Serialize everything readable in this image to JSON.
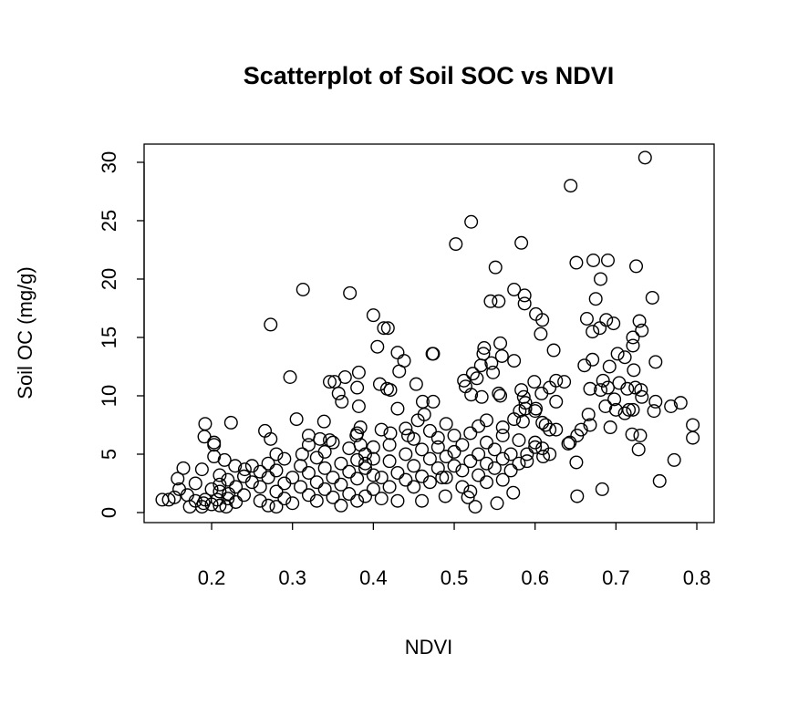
{
  "chart_data": {
    "type": "scatter",
    "title": "Scatterplot of Soil SOC vs NDVI",
    "xlabel": "NDVI",
    "ylabel": "Soil OC (mg/g)",
    "xlim": [
      0.1165,
      0.8214
    ],
    "ylim": [
      -0.86,
      31.56
    ],
    "xticks": [
      0.2,
      0.3,
      0.4,
      0.5,
      0.6,
      0.7,
      0.8
    ],
    "xtick_labels": [
      "0.2",
      "0.3",
      "0.4",
      "0.5",
      "0.6",
      "0.7",
      "0.8"
    ],
    "yticks": [
      0,
      5,
      10,
      15,
      20,
      25,
      30
    ],
    "ytick_labels": [
      "0",
      "5",
      "10",
      "15",
      "20",
      "25",
      "30"
    ],
    "grid": false,
    "marker": "open-circle",
    "color": "#000000",
    "points": [
      [
        0.736,
        30.4
      ],
      [
        0.644,
        28.0
      ],
      [
        0.521,
        24.9
      ],
      [
        0.502,
        23.0
      ],
      [
        0.583,
        23.1
      ],
      [
        0.551,
        21.0
      ],
      [
        0.651,
        21.4
      ],
      [
        0.672,
        21.6
      ],
      [
        0.69,
        21.6
      ],
      [
        0.681,
        20.0
      ],
      [
        0.725,
        21.1
      ],
      [
        0.675,
        18.3
      ],
      [
        0.745,
        18.4
      ],
      [
        0.545,
        18.1
      ],
      [
        0.555,
        18.1
      ],
      [
        0.574,
        19.1
      ],
      [
        0.587,
        18.6
      ],
      [
        0.587,
        17.9
      ],
      [
        0.601,
        17.0
      ],
      [
        0.609,
        16.5
      ],
      [
        0.607,
        15.3
      ],
      [
        0.623,
        13.9
      ],
      [
        0.664,
        16.6
      ],
      [
        0.688,
        16.5
      ],
      [
        0.697,
        16.2
      ],
      [
        0.68,
        15.8
      ],
      [
        0.671,
        15.5
      ],
      [
        0.729,
        16.4
      ],
      [
        0.732,
        15.6
      ],
      [
        0.721,
        15.0
      ],
      [
        0.721,
        14.3
      ],
      [
        0.702,
        13.6
      ],
      [
        0.711,
        13.3
      ],
      [
        0.671,
        13.1
      ],
      [
        0.661,
        12.6
      ],
      [
        0.692,
        12.5
      ],
      [
        0.722,
        12.2
      ],
      [
        0.749,
        12.9
      ],
      [
        0.474,
        13.6
      ],
      [
        0.557,
        14.5
      ],
      [
        0.537,
        14.1
      ],
      [
        0.536,
        13.6
      ],
      [
        0.533,
        12.6
      ],
      [
        0.559,
        13.4
      ],
      [
        0.574,
        13.0
      ],
      [
        0.546,
        12.8
      ],
      [
        0.548,
        12.0
      ],
      [
        0.523,
        11.9
      ],
      [
        0.512,
        11.3
      ],
      [
        0.514,
        10.8
      ],
      [
        0.528,
        11.5
      ],
      [
        0.521,
        10.1
      ],
      [
        0.534,
        9.9
      ],
      [
        0.555,
        10.2
      ],
      [
        0.557,
        10.0
      ],
      [
        0.599,
        11.2
      ],
      [
        0.608,
        10.2
      ],
      [
        0.583,
        10.5
      ],
      [
        0.586,
        9.9
      ],
      [
        0.588,
        9.4
      ],
      [
        0.618,
        10.7
      ],
      [
        0.626,
        11.3
      ],
      [
        0.636,
        11.2
      ],
      [
        0.626,
        9.5
      ],
      [
        0.668,
        10.6
      ],
      [
        0.681,
        10.5
      ],
      [
        0.69,
        10.7
      ],
      [
        0.684,
        11.3
      ],
      [
        0.704,
        11.1
      ],
      [
        0.714,
        10.6
      ],
      [
        0.724,
        10.7
      ],
      [
        0.731,
        10.5
      ],
      [
        0.732,
        9.9
      ],
      [
        0.698,
        9.7
      ],
      [
        0.687,
        9.1
      ],
      [
        0.7,
        8.8
      ],
      [
        0.711,
        8.5
      ],
      [
        0.716,
        8.8
      ],
      [
        0.721,
        8.8
      ],
      [
        0.693,
        7.3
      ],
      [
        0.72,
        6.7
      ],
      [
        0.73,
        6.6
      ],
      [
        0.728,
        5.4
      ],
      [
        0.749,
        9.5
      ],
      [
        0.747,
        8.7
      ],
      [
        0.768,
        9.1
      ],
      [
        0.78,
        9.4
      ],
      [
        0.795,
        7.5
      ],
      [
        0.795,
        6.4
      ],
      [
        0.772,
        4.5
      ],
      [
        0.754,
        2.7
      ],
      [
        0.683,
        2.0
      ],
      [
        0.652,
        1.4
      ],
      [
        0.651,
        4.3
      ],
      [
        0.666,
        8.4
      ],
      [
        0.668,
        7.5
      ],
      [
        0.657,
        7.1
      ],
      [
        0.652,
        6.6
      ],
      [
        0.643,
        6.0
      ],
      [
        0.641,
        5.9
      ],
      [
        0.626,
        7.1
      ],
      [
        0.618,
        7.1
      ],
      [
        0.609,
        7.7
      ],
      [
        0.613,
        7.5
      ],
      [
        0.6,
        8.7
      ],
      [
        0.601,
        8.9
      ],
      [
        0.609,
        5.5
      ],
      [
        0.618,
        5.0
      ],
      [
        0.574,
        8.0
      ],
      [
        0.585,
        7.8
      ],
      [
        0.581,
        8.7
      ],
      [
        0.588,
        8.9
      ],
      [
        0.573,
        1.7
      ],
      [
        0.553,
        0.8
      ],
      [
        0.526,
        0.5
      ],
      [
        0.517,
        1.3
      ],
      [
        0.489,
        1.4
      ],
      [
        0.485,
        3.0
      ],
      [
        0.313,
        19.1
      ],
      [
        0.371,
        18.8
      ],
      [
        0.273,
        16.1
      ],
      [
        0.4,
        16.9
      ],
      [
        0.413,
        15.8
      ],
      [
        0.418,
        15.8
      ],
      [
        0.405,
        14.2
      ],
      [
        0.43,
        13.7
      ],
      [
        0.438,
        13.0
      ],
      [
        0.432,
        12.1
      ],
      [
        0.473,
        13.6
      ],
      [
        0.297,
        11.6
      ],
      [
        0.346,
        11.2
      ],
      [
        0.352,
        11.2
      ],
      [
        0.365,
        11.6
      ],
      [
        0.382,
        12.0
      ],
      [
        0.38,
        10.7
      ],
      [
        0.357,
        10.2
      ],
      [
        0.361,
        9.5
      ],
      [
        0.382,
        9.1
      ],
      [
        0.408,
        11.0
      ],
      [
        0.417,
        10.6
      ],
      [
        0.421,
        10.5
      ],
      [
        0.453,
        11.0
      ],
      [
        0.43,
        8.9
      ],
      [
        0.461,
        9.5
      ],
      [
        0.474,
        9.5
      ],
      [
        0.192,
        7.6
      ],
      [
        0.224,
        7.7
      ],
      [
        0.191,
        6.5
      ],
      [
        0.203,
        6.0
      ],
      [
        0.203,
        5.8
      ],
      [
        0.203,
        4.8
      ],
      [
        0.216,
        4.5
      ],
      [
        0.305,
        8.0
      ],
      [
        0.339,
        7.8
      ],
      [
        0.266,
        7.0
      ],
      [
        0.273,
        6.3
      ],
      [
        0.384,
        7.3
      ],
      [
        0.379,
        6.6
      ],
      [
        0.384,
        5.8
      ],
      [
        0.32,
        6.6
      ],
      [
        0.312,
        5.0
      ],
      [
        0.334,
        6.3
      ],
      [
        0.346,
        6.2
      ],
      [
        0.41,
        7.1
      ],
      [
        0.421,
        6.8
      ],
      [
        0.44,
        7.2
      ],
      [
        0.443,
        6.6
      ],
      [
        0.455,
        7.9
      ],
      [
        0.463,
        8.4
      ],
      [
        0.165,
        3.8
      ],
      [
        0.158,
        2.9
      ],
      [
        0.139,
        1.1
      ],
      [
        0.147,
        1.1
      ],
      [
        0.154,
        1.3
      ],
      [
        0.173,
        0.5
      ],
      [
        0.188,
        0.5
      ],
      [
        0.192,
        1.1
      ],
      [
        0.207,
        1.1
      ],
      [
        0.218,
        0.5
      ],
      [
        0.221,
        1.6
      ],
      [
        0.21,
        3.2
      ],
      [
        0.21,
        2.4
      ],
      [
        0.229,
        4.0
      ],
      [
        0.241,
        3.7
      ],
      [
        0.188,
        3.7
      ],
      [
        0.16,
        2.0
      ],
      [
        0.17,
        1.5
      ],
      [
        0.18,
        2.5
      ],
      [
        0.18,
        1.0
      ],
      [
        0.19,
        0.8
      ],
      [
        0.2,
        2.0
      ],
      [
        0.2,
        0.7
      ],
      [
        0.21,
        1.8
      ],
      [
        0.21,
        0.6
      ],
      [
        0.22,
        2.8
      ],
      [
        0.22,
        1.2
      ],
      [
        0.23,
        2.2
      ],
      [
        0.23,
        0.9
      ],
      [
        0.24,
        3.1
      ],
      [
        0.24,
        1.5
      ],
      [
        0.25,
        2.6
      ],
      [
        0.25,
        4.0
      ],
      [
        0.26,
        3.5
      ],
      [
        0.26,
        1.0
      ],
      [
        0.26,
        2.2
      ],
      [
        0.27,
        3.0
      ],
      [
        0.27,
        0.6
      ],
      [
        0.27,
        4.2
      ],
      [
        0.28,
        1.8
      ],
      [
        0.28,
        0.5
      ],
      [
        0.28,
        3.6
      ],
      [
        0.28,
        5.0
      ],
      [
        0.29,
        2.5
      ],
      [
        0.29,
        4.6
      ],
      [
        0.29,
        1.2
      ],
      [
        0.3,
        3.0
      ],
      [
        0.3,
        0.8
      ],
      [
        0.31,
        2.2
      ],
      [
        0.31,
        4.0
      ],
      [
        0.32,
        3.4
      ],
      [
        0.32,
        1.5
      ],
      [
        0.32,
        5.8
      ],
      [
        0.33,
        2.6
      ],
      [
        0.33,
        4.7
      ],
      [
        0.33,
        1.0
      ],
      [
        0.34,
        3.8
      ],
      [
        0.34,
        2.0
      ],
      [
        0.34,
        5.2
      ],
      [
        0.35,
        3.0
      ],
      [
        0.35,
        1.3
      ],
      [
        0.35,
        6.0
      ],
      [
        0.36,
        4.2
      ],
      [
        0.36,
        2.4
      ],
      [
        0.36,
        0.6
      ],
      [
        0.37,
        3.5
      ],
      [
        0.37,
        5.5
      ],
      [
        0.37,
        1.6
      ],
      [
        0.38,
        4.5
      ],
      [
        0.38,
        2.9
      ],
      [
        0.38,
        6.8
      ],
      [
        0.38,
        1.0
      ],
      [
        0.39,
        3.8
      ],
      [
        0.39,
        5.0
      ],
      [
        0.39,
        4.2
      ],
      [
        0.39,
        1.4
      ],
      [
        0.4,
        4.6
      ],
      [
        0.4,
        3.2
      ],
      [
        0.4,
        2.0
      ],
      [
        0.4,
        5.6
      ],
      [
        0.41,
        3.0
      ],
      [
        0.41,
        1.2
      ],
      [
        0.42,
        4.4
      ],
      [
        0.42,
        2.2
      ],
      [
        0.42,
        5.8
      ],
      [
        0.43,
        3.4
      ],
      [
        0.43,
        1.0
      ],
      [
        0.44,
        2.8
      ],
      [
        0.44,
        5.0
      ],
      [
        0.45,
        4.0
      ],
      [
        0.45,
        2.2
      ],
      [
        0.45,
        6.3
      ],
      [
        0.46,
        3.1
      ],
      [
        0.46,
        5.4
      ],
      [
        0.46,
        1.0
      ],
      [
        0.47,
        4.6
      ],
      [
        0.47,
        2.6
      ],
      [
        0.47,
        7.0
      ],
      [
        0.48,
        5.6
      ],
      [
        0.48,
        3.8
      ],
      [
        0.48,
        6.4
      ],
      [
        0.49,
        4.8
      ],
      [
        0.49,
        7.6
      ],
      [
        0.49,
        3.0
      ],
      [
        0.5,
        5.2
      ],
      [
        0.5,
        6.6
      ],
      [
        0.5,
        4.0
      ],
      [
        0.51,
        3.6
      ],
      [
        0.51,
        5.8
      ],
      [
        0.51,
        2.2
      ],
      [
        0.52,
        4.4
      ],
      [
        0.52,
        6.8
      ],
      [
        0.52,
        1.8
      ],
      [
        0.53,
        5.0
      ],
      [
        0.53,
        3.2
      ],
      [
        0.53,
        7.4
      ],
      [
        0.54,
        4.2
      ],
      [
        0.54,
        2.6
      ],
      [
        0.54,
        6.0
      ],
      [
        0.55,
        3.8
      ],
      [
        0.55,
        5.4
      ],
      [
        0.56,
        4.6
      ],
      [
        0.56,
        2.8
      ],
      [
        0.56,
        6.6
      ],
      [
        0.57,
        3.6
      ],
      [
        0.57,
        5.0
      ],
      [
        0.58,
        4.2
      ],
      [
        0.58,
        6.2
      ],
      [
        0.59,
        5.0
      ],
      [
        0.59,
        4.4
      ],
      [
        0.6,
        5.6
      ],
      [
        0.61,
        4.8
      ],
      [
        0.54,
        7.9
      ],
      [
        0.56,
        7.3
      ],
      [
        0.6,
        6.0
      ]
    ]
  }
}
